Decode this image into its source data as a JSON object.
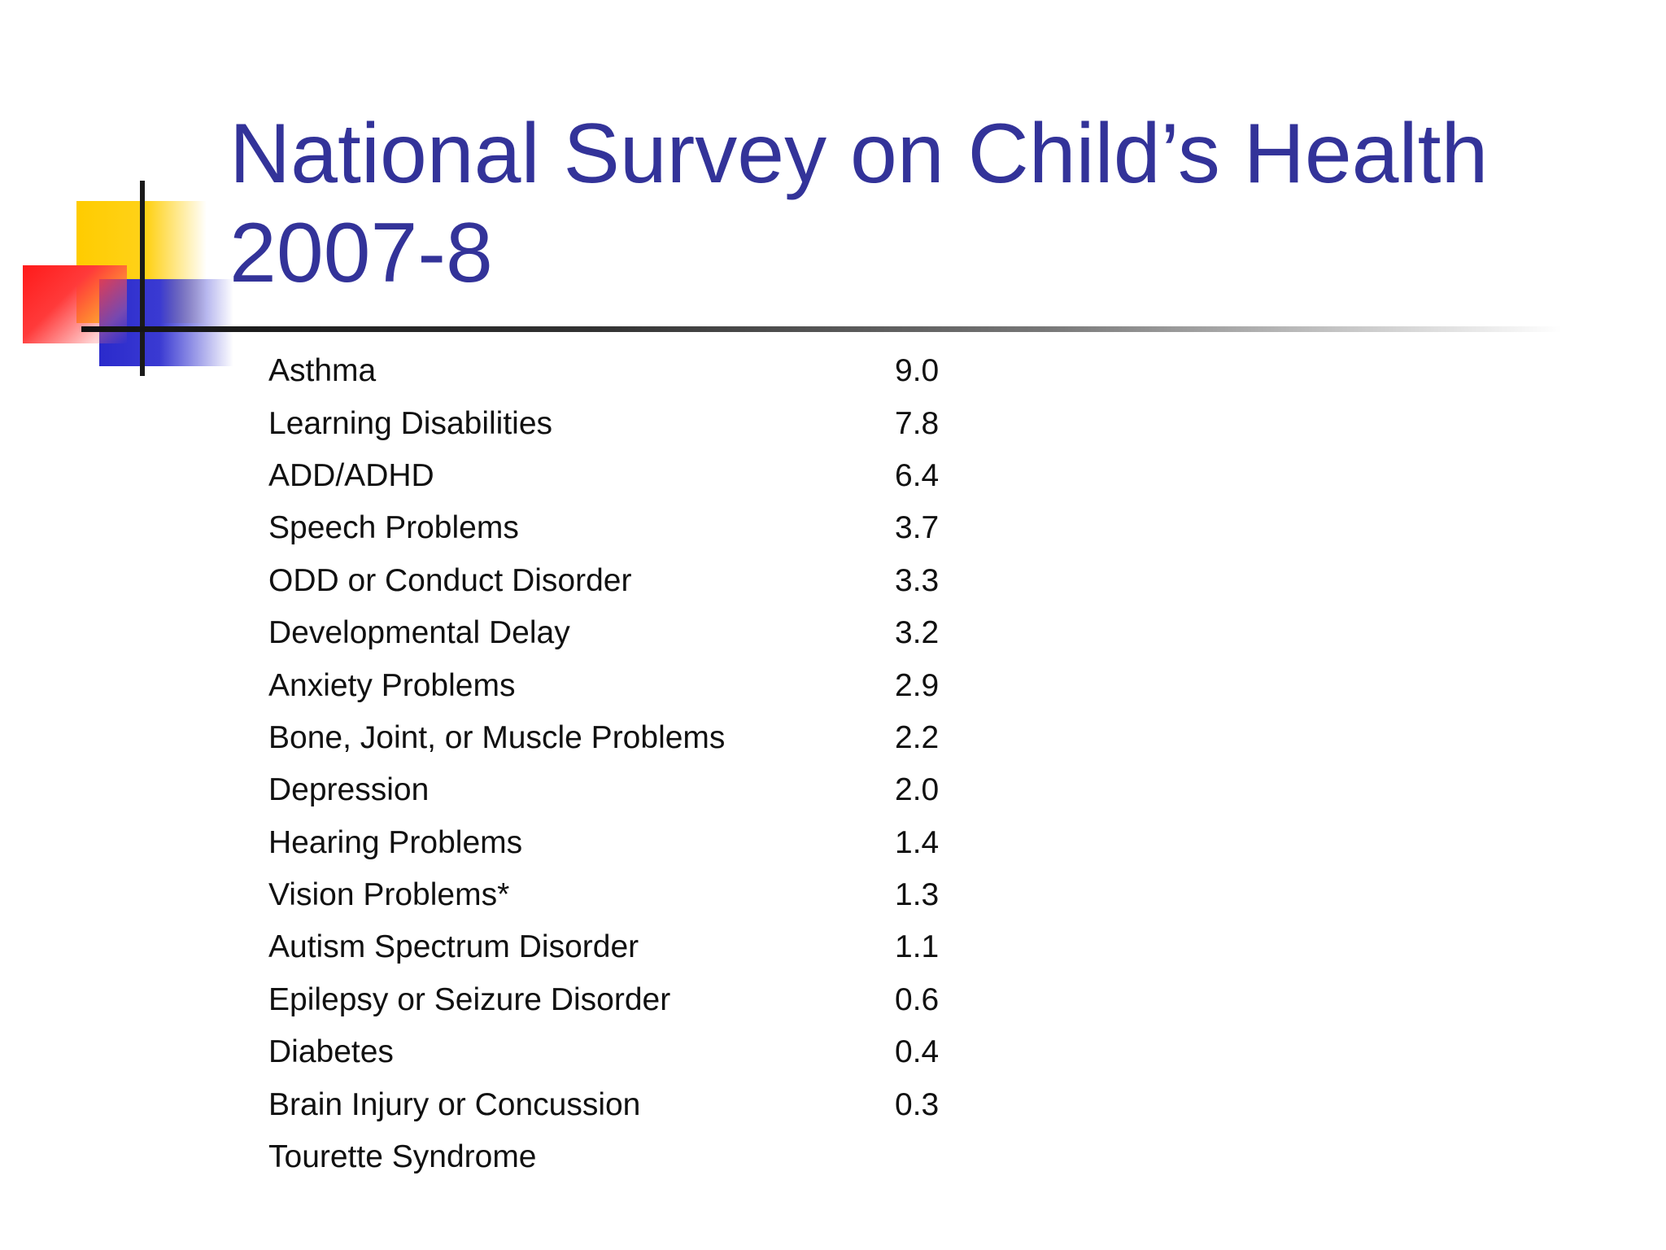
{
  "slide": {
    "title_line1": "National Survey on Child’s Health",
    "title_line2": "2007-8"
  },
  "rows": [
    {
      "label": "Asthma",
      "value": "9.0"
    },
    {
      "label": "Learning Disabilities",
      "value": "7.8"
    },
    {
      "label": "ADD/ADHD",
      "value": "6.4"
    },
    {
      "label": "Speech Problems",
      "value": "3.7"
    },
    {
      "label": "ODD or Conduct Disorder",
      "value": "3.3"
    },
    {
      "label": "Developmental Delay",
      "value": "3.2"
    },
    {
      "label": "Anxiety Problems",
      "value": "2.9"
    },
    {
      "label": "Bone, Joint, or Muscle Problems",
      "value": "2.2"
    },
    {
      "label": "Depression",
      "value": "2.0"
    },
    {
      "label": "Hearing Problems",
      "value": "1.4"
    },
    {
      "label": "Vision Problems*",
      "value": "1.3"
    },
    {
      "label": "Autism Spectrum Disorder",
      "value": "1.1"
    },
    {
      "label": "Epilepsy or Seizure Disorder",
      "value": "0.6"
    },
    {
      "label": "Diabetes",
      "value": "0.4"
    },
    {
      "label": "Brain Injury or Concussion",
      "value": "0.3"
    },
    {
      "label": "Tourette Syndrome",
      "value": ""
    }
  ],
  "colors": {
    "title": "#333399",
    "text": "#111111",
    "yellow_block": "#ffcc00",
    "red_block": "#ff1a1a",
    "blue_block": "#2a2acc"
  }
}
